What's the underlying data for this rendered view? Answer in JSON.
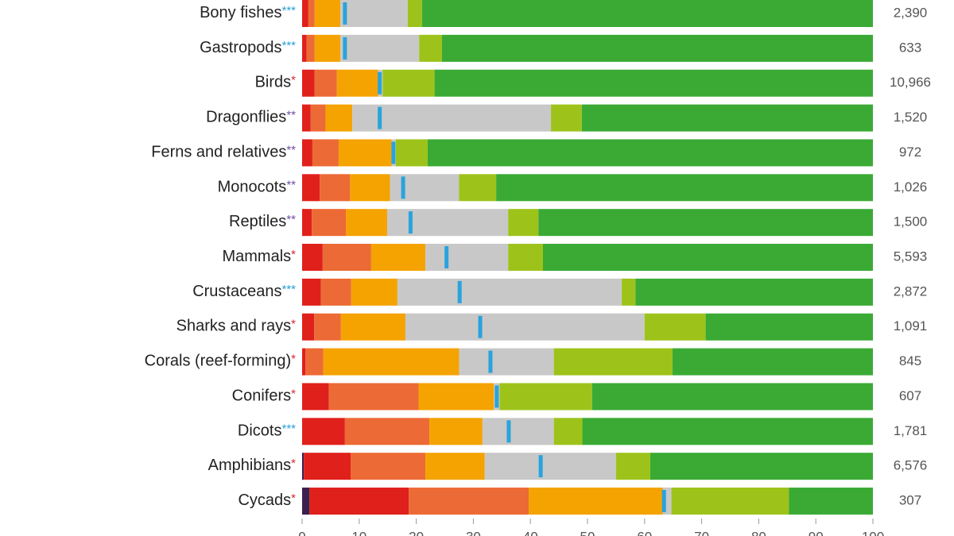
{
  "chart_data": {
    "type": "stacked-bar-horizontal",
    "categories": [
      "Bony fishes",
      "Gastropods",
      "Birds",
      "Dragonflies",
      "Ferns and relatives",
      "Monocots",
      "Reptiles",
      "Mammals",
      "Crustaceans",
      "Sharks and rays",
      "Corals (reef-forming)",
      "Conifers",
      "Dicots",
      "Amphibians",
      "Cycads"
    ],
    "significance": [
      "***",
      "***",
      "*",
      "**",
      "**",
      "**",
      "**",
      "*",
      "***",
      "*",
      "*",
      "*",
      "***",
      "*",
      "*"
    ],
    "significance_colors": [
      "#d9262c",
      "#6b4fa0",
      "#2a9fd6"
    ],
    "species_counts": [
      "2,390",
      "633",
      "10,966",
      "1,520",
      "972",
      "1,026",
      "1,500",
      "5,593",
      "2,872",
      "1,091",
      "845",
      "607",
      "1,781",
      "6,576",
      "307"
    ],
    "series": [
      {
        "color": "#3b1f4f",
        "values": [
          0,
          0,
          0,
          0,
          0,
          0,
          0,
          0,
          0,
          0,
          0,
          0,
          0,
          0.3,
          1.3
        ]
      },
      {
        "color": "#e0201b",
        "values": [
          1.1,
          0.8,
          2.2,
          1.5,
          1.8,
          3.1,
          1.7,
          3.6,
          3.3,
          2.1,
          0.6,
          4.7,
          7.5,
          8.2,
          17.4
        ]
      },
      {
        "color": "#ec6a35",
        "values": [
          1.1,
          1.4,
          3.9,
          2.6,
          4.6,
          5.3,
          6,
          8.5,
          5.3,
          4.7,
          3.1,
          15.7,
          14.8,
          13.1,
          21
        ]
      },
      {
        "color": "#f4a300",
        "values": [
          4.5,
          4.5,
          7.2,
          4.7,
          9.3,
          7,
          7.2,
          9.5,
          8.1,
          11.3,
          23.8,
          13.2,
          9.3,
          10.4,
          23.5
        ]
      },
      {
        "color": "#c8c8c8",
        "values": [
          11.8,
          13.8,
          0.8,
          34.8,
          0.7,
          12.1,
          21.2,
          14.5,
          39.3,
          41.9,
          16.6,
          1,
          12.5,
          23,
          1.5
        ]
      },
      {
        "color": "#9dc31a",
        "values": [
          2.5,
          4,
          9.1,
          5.4,
          5.6,
          6.5,
          5.3,
          6.1,
          2.4,
          10.7,
          20.8,
          16.2,
          5,
          6,
          20.6
        ]
      },
      {
        "color": "#3aaa35",
        "values": [
          79,
          75.5,
          76.8,
          51,
          78,
          66,
          58.6,
          57.8,
          41.6,
          29.3,
          35.1,
          49.2,
          50.9,
          39,
          14.7
        ]
      }
    ],
    "markers": {
      "color": "#29a3dd",
      "values": [
        7.5,
        7.5,
        13.6,
        13.6,
        16,
        17.7,
        19,
        25.3,
        27.6,
        31.2,
        33,
        34.1,
        36.2,
        41.8,
        63.4
      ]
    },
    "xlim": [
      0,
      100
    ],
    "xticks": [
      0,
      10,
      20,
      30,
      40,
      50,
      60,
      70,
      80,
      90,
      100
    ]
  }
}
